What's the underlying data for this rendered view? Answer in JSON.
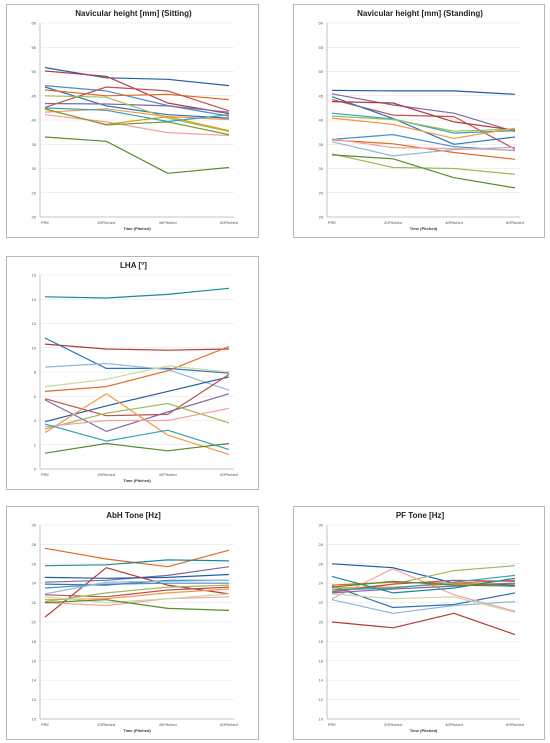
{
  "x_categories": [
    "PRE",
    "20Pitched",
    "40Pitched",
    "60Pitched"
  ],
  "x_axis_label": "Time (Pitched)",
  "chart_data": [
    {
      "type": "line",
      "title": "Navicular height [mm] (Sitting)",
      "xlabel": "Time (Pitched)",
      "ylabel": "",
      "categories": [
        "PRE",
        "20Pitched",
        "40Pitched",
        "60Pitched"
      ],
      "ylim": [
        20,
        60
      ],
      "yticks": [
        20,
        25,
        30,
        35,
        40,
        45,
        50,
        55,
        60
      ],
      "grid": true,
      "series": [
        {
          "color": "#1f5f9e",
          "values": [
            50.8,
            48.7,
            48.4,
            47.1
          ]
        },
        {
          "color": "#b33a3a",
          "values": [
            50.1,
            49.0,
            43.5,
            41.3
          ]
        },
        {
          "color": "#4a8fc9",
          "values": [
            47.1,
            46.0,
            43.0,
            40.8
          ]
        },
        {
          "color": "#2e75b6",
          "values": [
            46.8,
            42.9,
            41.1,
            40.4
          ]
        },
        {
          "color": "#e26b23",
          "values": [
            46.2,
            45.0,
            45.3,
            44.2
          ]
        },
        {
          "color": "#c0504d",
          "values": [
            42.6,
            46.8,
            46.0,
            41.9
          ]
        },
        {
          "color": "#7f6aa3",
          "values": [
            43.4,
            43.3,
            42.9,
            41.6
          ]
        },
        {
          "color": "#9bbb59",
          "values": [
            45.0,
            44.7,
            40.4,
            37.6
          ]
        },
        {
          "color": "#f79646",
          "values": [
            41.6,
            42.3,
            40.7,
            40.1
          ]
        },
        {
          "color": "#f2a1a1",
          "values": [
            41.1,
            39.6,
            37.4,
            36.8
          ]
        },
        {
          "color": "#d4a017",
          "values": [
            42.2,
            39.1,
            40.7,
            37.8
          ]
        },
        {
          "color": "#7a9a3a",
          "values": [
            42.3,
            39.0,
            39.6,
            37.0
          ]
        },
        {
          "color": "#31a2b8",
          "values": [
            42.5,
            42.0,
            39.7,
            41.1
          ]
        },
        {
          "color": "#5a8a2a",
          "values": [
            36.5,
            35.6,
            29.0,
            30.2
          ]
        }
      ]
    },
    {
      "type": "line",
      "title": "Navicular height [mm] (Standing)",
      "xlabel": "Time (Pitched)",
      "ylabel": "",
      "categories": [
        "PRE",
        "20Pitched",
        "40Pitched",
        "60Pitched"
      ],
      "ylim": [
        20,
        60
      ],
      "yticks": [
        20,
        25,
        30,
        35,
        40,
        45,
        50,
        55,
        60
      ],
      "grid": true,
      "series": [
        {
          "color": "#1f5f9e",
          "values": [
            46.1,
            46.0,
            46.0,
            45.3
          ]
        },
        {
          "color": "#7f6aa3",
          "values": [
            45.4,
            43.1,
            41.4,
            37.6
          ]
        },
        {
          "color": "#c0504d",
          "values": [
            44.2,
            41.0,
            40.7,
            34.0
          ]
        },
        {
          "color": "#2e75b6",
          "values": [
            44.8,
            40.3,
            35.0,
            36.5
          ]
        },
        {
          "color": "#b33a3a",
          "values": [
            43.8,
            43.5,
            39.6,
            37.9
          ]
        },
        {
          "color": "#31a2b8",
          "values": [
            41.4,
            40.2,
            37.3,
            37.8
          ]
        },
        {
          "color": "#9bbb59",
          "values": [
            40.8,
            40.1,
            37.7,
            38.1
          ]
        },
        {
          "color": "#f79646",
          "values": [
            40.4,
            39.1,
            36.2,
            38.3
          ]
        },
        {
          "color": "#e26b23",
          "values": [
            35.9,
            35.1,
            33.3,
            31.9
          ]
        },
        {
          "color": "#4a8fc9",
          "values": [
            36.0,
            37.0,
            34.5,
            33.7
          ]
        },
        {
          "color": "#8fb8de",
          "values": [
            35.5,
            32.6,
            33.9,
            34.4
          ]
        },
        {
          "color": "#f2a1a1",
          "values": [
            36.1,
            34.3,
            34.1,
            33.8
          ]
        },
        {
          "color": "#9bbb59",
          "values": [
            33.0,
            30.2,
            30.0,
            28.8
          ]
        },
        {
          "color": "#5a8a2a",
          "values": [
            32.8,
            32.0,
            28.1,
            26.0
          ]
        }
      ]
    },
    {
      "type": "line",
      "title": "LHA [°]",
      "xlabel": "Time (Pitched)",
      "ylabel": "",
      "categories": [
        "PRE",
        "20Pitched",
        "40Pitched",
        "60Pitched"
      ],
      "ylim": [
        0,
        16
      ],
      "yticks": [
        0,
        2,
        4,
        6,
        8,
        10,
        12,
        14,
        16
      ],
      "grid": true,
      "series": [
        {
          "color": "#1a8a9a",
          "values": [
            14.2,
            14.1,
            14.4,
            14.9
          ]
        },
        {
          "color": "#b33a3a",
          "values": [
            10.3,
            9.9,
            9.8,
            9.9
          ]
        },
        {
          "color": "#2e75b6",
          "values": [
            10.8,
            8.3,
            8.3,
            7.9
          ]
        },
        {
          "color": "#8fb8de",
          "values": [
            8.4,
            8.7,
            8.2,
            6.5
          ]
        },
        {
          "color": "#e26b23",
          "values": [
            6.4,
            6.8,
            8.1,
            10.1
          ]
        },
        {
          "color": "#c6d9a0",
          "values": [
            6.8,
            7.4,
            8.5,
            8.0
          ]
        },
        {
          "color": "#1f5f9e",
          "values": [
            3.9,
            5.2,
            6.4,
            7.6
          ]
        },
        {
          "color": "#c0504d",
          "values": [
            5.8,
            4.4,
            4.5,
            7.8
          ]
        },
        {
          "color": "#7f6aa3",
          "values": [
            5.7,
            3.1,
            4.7,
            6.2
          ]
        },
        {
          "color": "#9bbb59",
          "values": [
            3.3,
            4.6,
            5.4,
            3.8
          ]
        },
        {
          "color": "#f79646",
          "values": [
            3.0,
            6.2,
            2.8,
            1.2
          ]
        },
        {
          "color": "#f2a1a1",
          "values": [
            3.5,
            4.0,
            4.0,
            5.0
          ]
        },
        {
          "color": "#31a2b8",
          "values": [
            3.7,
            2.3,
            3.2,
            1.6
          ]
        },
        {
          "color": "#5a8a2a",
          "values": [
            1.3,
            2.1,
            1.5,
            2.1
          ]
        }
      ]
    },
    {
      "type": "line",
      "title": "AbH Tone [Hz]",
      "xlabel": "Time (Pitched)",
      "ylabel": "",
      "categories": [
        "PRE",
        "20Pitched",
        "40Pitched",
        "60Pitched"
      ],
      "ylim": [
        10,
        30
      ],
      "yticks": [
        10,
        12,
        14,
        16,
        18,
        20,
        22,
        24,
        26,
        28,
        30
      ],
      "grid": true,
      "series": [
        {
          "color": "#e26b23",
          "values": [
            27.6,
            26.5,
            25.7,
            27.4
          ]
        },
        {
          "color": "#1a8a9a",
          "values": [
            25.8,
            25.9,
            26.4,
            26.3
          ]
        },
        {
          "color": "#7f6aa3",
          "values": [
            24.1,
            24.3,
            24.8,
            25.7
          ]
        },
        {
          "color": "#1f5f9e",
          "values": [
            24.6,
            24.5,
            24.6,
            24.9
          ]
        },
        {
          "color": "#b33a3a",
          "values": [
            20.5,
            25.6,
            23.8,
            22.9
          ]
        },
        {
          "color": "#2e75b6",
          "values": [
            23.9,
            23.8,
            24.3,
            24.3
          ]
        },
        {
          "color": "#4a8fc9",
          "values": [
            23.5,
            23.9,
            24.0,
            24.0
          ]
        },
        {
          "color": "#8fb8de",
          "values": [
            22.9,
            24.1,
            24.2,
            24.3
          ]
        },
        {
          "color": "#c0504d",
          "values": [
            22.8,
            22.6,
            23.3,
            23.6
          ]
        },
        {
          "color": "#f79646",
          "values": [
            22.3,
            22.4,
            23.0,
            23.4
          ]
        },
        {
          "color": "#9bbb59",
          "values": [
            22.1,
            23.0,
            23.6,
            23.8
          ]
        },
        {
          "color": "#f2a1a1",
          "values": [
            22.0,
            21.7,
            22.4,
            22.6
          ]
        },
        {
          "color": "#c6d9a0",
          "values": [
            22.6,
            22.0,
            22.4,
            22.9
          ]
        },
        {
          "color": "#5a8a2a",
          "values": [
            22.0,
            22.3,
            21.4,
            21.2
          ]
        }
      ]
    },
    {
      "type": "line",
      "title": "PF Tone [Hz]",
      "xlabel": "Time (Pitched)",
      "ylabel": "",
      "categories": [
        "PRE",
        "20Pitched",
        "40Pitched",
        "60Pitched"
      ],
      "ylim": [
        10,
        30
      ],
      "yticks": [
        10,
        12,
        14,
        16,
        18,
        20,
        22,
        24,
        26,
        28,
        30
      ],
      "grid": true,
      "series": [
        {
          "color": "#1f5f9e",
          "values": [
            26.0,
            25.6,
            24.0,
            23.8
          ]
        },
        {
          "color": "#9bbb59",
          "values": [
            23.3,
            23.9,
            25.3,
            25.8
          ]
        },
        {
          "color": "#2e75b6",
          "values": [
            23.7,
            21.5,
            21.8,
            23.0
          ]
        },
        {
          "color": "#f2a1a1",
          "values": [
            22.4,
            25.5,
            22.8,
            21.1
          ]
        },
        {
          "color": "#8fb8de",
          "values": [
            22.3,
            20.9,
            21.7,
            22.1
          ]
        },
        {
          "color": "#e26b23",
          "values": [
            23.8,
            24.1,
            24.0,
            24.3
          ]
        },
        {
          "color": "#f79646",
          "values": [
            23.5,
            23.6,
            23.9,
            24.0
          ]
        },
        {
          "color": "#c0504d",
          "values": [
            23.1,
            23.9,
            24.3,
            24.2
          ]
        },
        {
          "color": "#7f6aa3",
          "values": [
            23.0,
            23.4,
            23.7,
            24.0
          ]
        },
        {
          "color": "#1a8a9a",
          "values": [
            24.7,
            23.0,
            23.5,
            24.5
          ]
        },
        {
          "color": "#31a2b8",
          "values": [
            23.3,
            23.5,
            24.1,
            24.8
          ]
        },
        {
          "color": "#c6d9a0",
          "values": [
            22.9,
            22.4,
            22.6,
            21.0
          ]
        },
        {
          "color": "#5a8a2a",
          "values": [
            23.6,
            24.2,
            23.8,
            23.7
          ]
        },
        {
          "color": "#b33a3a",
          "values": [
            20.0,
            19.4,
            20.9,
            18.7
          ]
        }
      ]
    }
  ]
}
